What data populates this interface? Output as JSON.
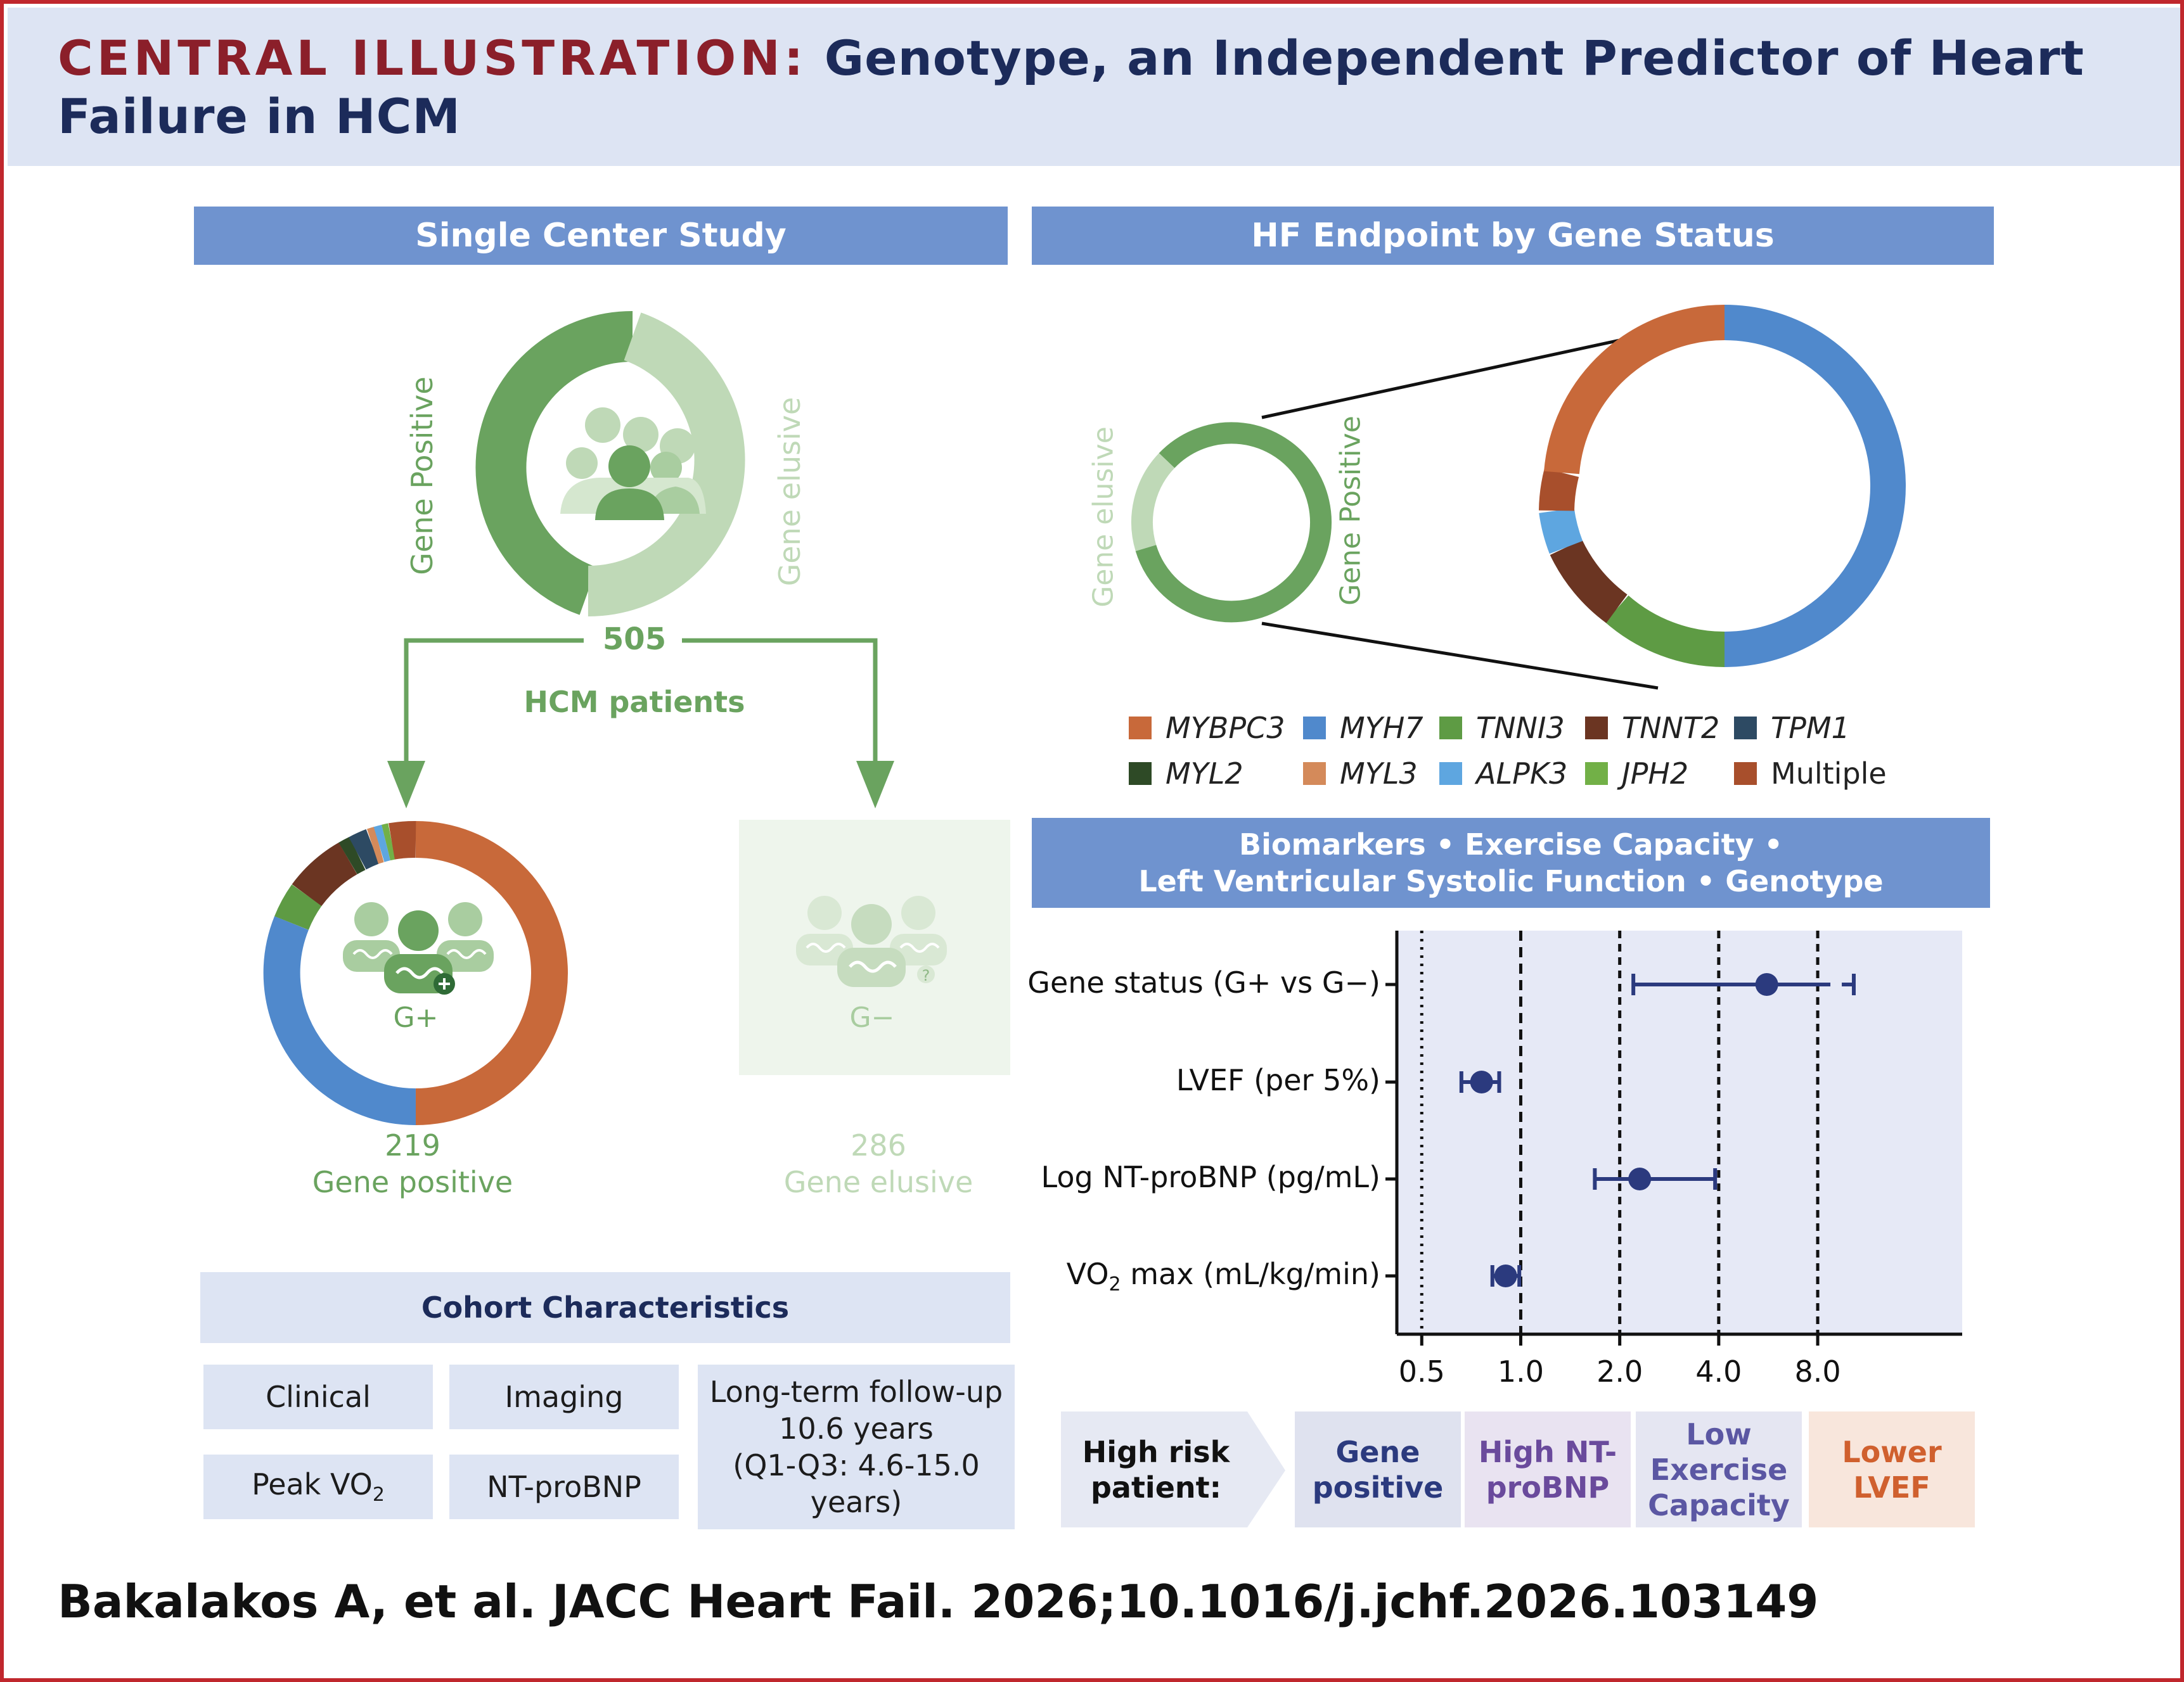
{
  "header": {
    "title_prefix": "CENTRAL ILLUSTRATION:",
    "title_line1": "Genotype, an Independent Predictor of Heart",
    "title_line2": "Failure in HCM"
  },
  "left_panel": {
    "title": "Single Center Study",
    "ring_label_positive": "Gene Positive",
    "ring_label_elusive": "Gene elusive",
    "total_count": "505",
    "total_label": "HCM patients",
    "gplus_label": "G+",
    "gminus_label": "G−",
    "positive_count": "219",
    "positive_label": "Gene positive",
    "elusive_count": "286",
    "elusive_label": "Gene elusive",
    "colors": {
      "green_dark": "#6aa35f",
      "green_light": "#bfd9b7",
      "green_faint": "#eef5ec"
    }
  },
  "cohort": {
    "title": "Cohort Characteristics",
    "clinical": "Clinical",
    "imaging": "Imaging",
    "peak_vo2_prefix": "Peak VO",
    "peak_vo2_sub": "2",
    "ntprobnp": "NT-proBNP",
    "followup_line1": "Long-term follow-up",
    "followup_line2": "10.6 years",
    "followup_line3": "(Q1-Q3: 4.6-15.0 years)"
  },
  "right_panel": {
    "title": "HF Endpoint by Gene Status",
    "small_ring_elusive": "Gene elusive",
    "small_ring_positive": "Gene Positive"
  },
  "gene_legend": [
    {
      "name": "MYBPC3",
      "color": "#c8693a",
      "italic": true
    },
    {
      "name": "MYH7",
      "color": "#5089cc",
      "italic": true
    },
    {
      "name": "TNNI3",
      "color": "#5e9b44",
      "italic": true
    },
    {
      "name": "TNNT2",
      "color": "#6b3522",
      "italic": true
    },
    {
      "name": "TPM1",
      "color": "#2d4a63",
      "italic": true
    },
    {
      "name": "MYL2",
      "color": "#2e4a26",
      "italic": true
    },
    {
      "name": "MYL3",
      "color": "#d48a5a",
      "italic": true
    },
    {
      "name": "ALPK3",
      "color": "#5ea6e0",
      "italic": true
    },
    {
      "name": "JPH2",
      "color": "#72b047",
      "italic": true
    },
    {
      "name": "Multiple",
      "color": "#a84f2c",
      "italic": false
    }
  ],
  "forest": {
    "title_line1": "Biomarkers • Exercise Capacity •",
    "title_line2": "Left Ventricular Systolic Function • Genotype",
    "rows": [
      {
        "label": "Gene status (G+ vs G−)",
        "label_sub": "",
        "label_suffix": ""
      },
      {
        "label": "LVEF (per 5%)",
        "label_sub": "",
        "label_suffix": ""
      },
      {
        "label": "Log NT-proBNP (pg/mL)",
        "label_sub": "",
        "label_suffix": ""
      },
      {
        "label": "VO",
        "label_sub": "2",
        "label_suffix": " max (mL/kg/min)"
      }
    ],
    "tick_labels": [
      "0.5",
      "1.0",
      "2.0",
      "4.0",
      "8.0"
    ]
  },
  "chart_data": {
    "type": "scatter",
    "subtype": "forest_plot",
    "scale": "log2",
    "xlim": [
      0.42,
      22
    ],
    "x_ticks": [
      0.5,
      1.0,
      2.0,
      4.0,
      8.0
    ],
    "reference_lines": [
      0.5,
      1.0,
      2.0,
      4.0,
      8.0
    ],
    "categories": [
      "Gene status (G+ vs G−)",
      "LVEF (per 5%)",
      "Log NT-proBNP (pg/mL)",
      "VO2 max (mL/kg/min)"
    ],
    "estimates": [
      5.6,
      0.76,
      2.3,
      0.9
    ],
    "lower": [
      2.2,
      0.66,
      1.68,
      0.82
    ],
    "upper": [
      10.3,
      0.86,
      3.9,
      0.99
    ],
    "marker_color": "#2b3a7e",
    "grid": false
  },
  "risk": {
    "lead_line1": "High risk",
    "lead_line2": "patient:",
    "items": [
      {
        "line1": "Gene",
        "line2": "positive",
        "line3": "",
        "bg": "#dfe2ef",
        "fg": "#2b3a7e"
      },
      {
        "line1": "High NT-",
        "line2": "proBNP",
        "line3": "",
        "bg": "#e9e3f1",
        "fg": "#6a4a9c"
      },
      {
        "line1": "Low",
        "line2": "Exercise",
        "line3": "Capacity",
        "bg": "#e5e6f2",
        "fg": "#5b57a3"
      },
      {
        "line1": "Lower",
        "line2": "LVEF",
        "line3": "",
        "bg": "#f8e6dc",
        "fg": "#d0602e"
      }
    ]
  },
  "citation": "Bakalakos A, et al. JACC Heart Fail. 2026;10.1016/j.jchf.2026.103149"
}
